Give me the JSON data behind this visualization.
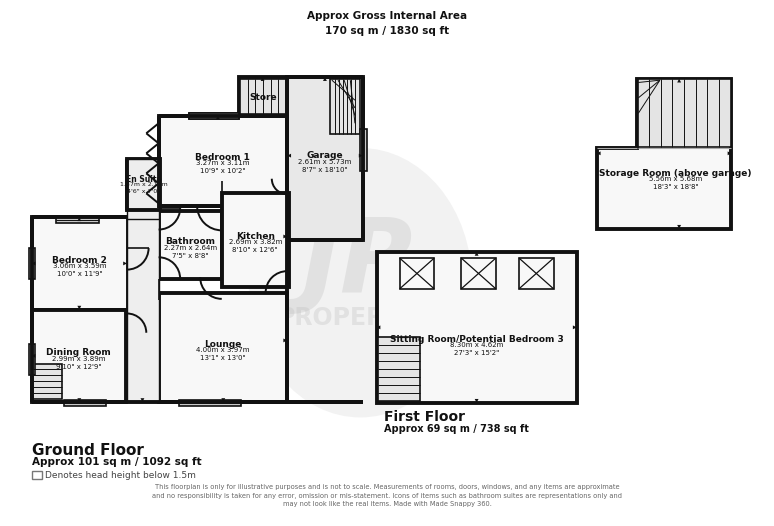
{
  "bg": "#ffffff",
  "wc": "#111111",
  "fc": "#f8f8f8",
  "gc": "#e8e8e8",
  "lw": 2.8,
  "header": "Approx Gross Internal Area\n170 sq m / 1830 sq ft",
  "gf_label": "Ground Floor",
  "gf_area": "Approx 101 sq m / 1092 sq ft",
  "ff_label": "First Floor",
  "ff_area": "Approx 69 sq m / 738 sq ft",
  "denotes": "Denotes head height below 1.5m",
  "disclaimer": "This floorplan is only for illustrative purposes and is not to scale. Measurements of rooms, doors, windows, and any items are approximate\nand no responsibility is taken for any error, omission or mis-statement. Icons of items such as bathroom suites are representations only and\nmay not look like the real items. Made with Made Snappy 360.",
  "rooms": {
    "dining": {
      "l": "Dining Room",
      "d": "2.99m x 3.89m\n9'10\" x 12'9\""
    },
    "bed2": {
      "l": "Bedroom 2",
      "d": "3.06m x 3.59m\n10'0\" x 11'9\""
    },
    "bathroom": {
      "l": "Bathroom",
      "d": "2.27m x 2.64m\n7'5\" x 8'8\""
    },
    "kitchen": {
      "l": "Kitchen",
      "d": "2.69m x 3.82m\n8'10\" x 12'6\""
    },
    "bed1": {
      "l": "Bedroom 1",
      "d": "3.27m x 3.11m\n10'9\" x 10'2\""
    },
    "ensuite": {
      "l": "En Suite",
      "d": "1.37m x 2.14m\n4'6\" x 7'0\""
    },
    "lounge": {
      "l": "Lounge",
      "d": "4.00m x 3.97m\n13'1\" x 13'0\""
    },
    "store": {
      "l": "Store",
      "d": ""
    },
    "garage": {
      "l": "Garage",
      "d": "2.61m x 5.73m\n8'7\" x 18'10\""
    },
    "sitting": {
      "l": "Sitting Room/Potential Bedroom 3",
      "d": "8.30m x 4.62m\n27'3\" x 15'2\""
    },
    "storabove": {
      "l": "Storage Room (above garage)",
      "d": "5.56m x 5.68m\n18'3\" x 18'8\""
    }
  }
}
